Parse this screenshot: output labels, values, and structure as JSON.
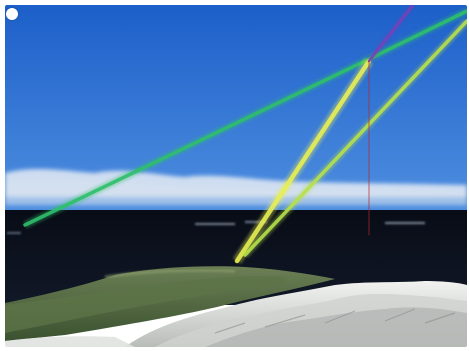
{
  "scene": {
    "colors": {
      "sky_top": "#1c5fc9",
      "sky_horizon": "#4f8fe0",
      "cloud": "#e9eef5",
      "sea": "#0b0f1a",
      "sea_highlight": "#a9b7c8",
      "land_green": "#4d6b39",
      "land_dark": "#2e3a22",
      "mountain_snow": "#e2e4e2",
      "mountain_shadow": "#8a8f8c"
    },
    "rays": [
      {
        "name": "green-ray",
        "color": "#2fbf6a"
      },
      {
        "name": "yellow-ray",
        "color": "#e8ee52"
      },
      {
        "name": "lime-ray",
        "color": "#b6e04a"
      },
      {
        "name": "purple-ray",
        "color": "#7a3fb8"
      },
      {
        "name": "red-ray",
        "color": "#b0282e"
      }
    ]
  }
}
